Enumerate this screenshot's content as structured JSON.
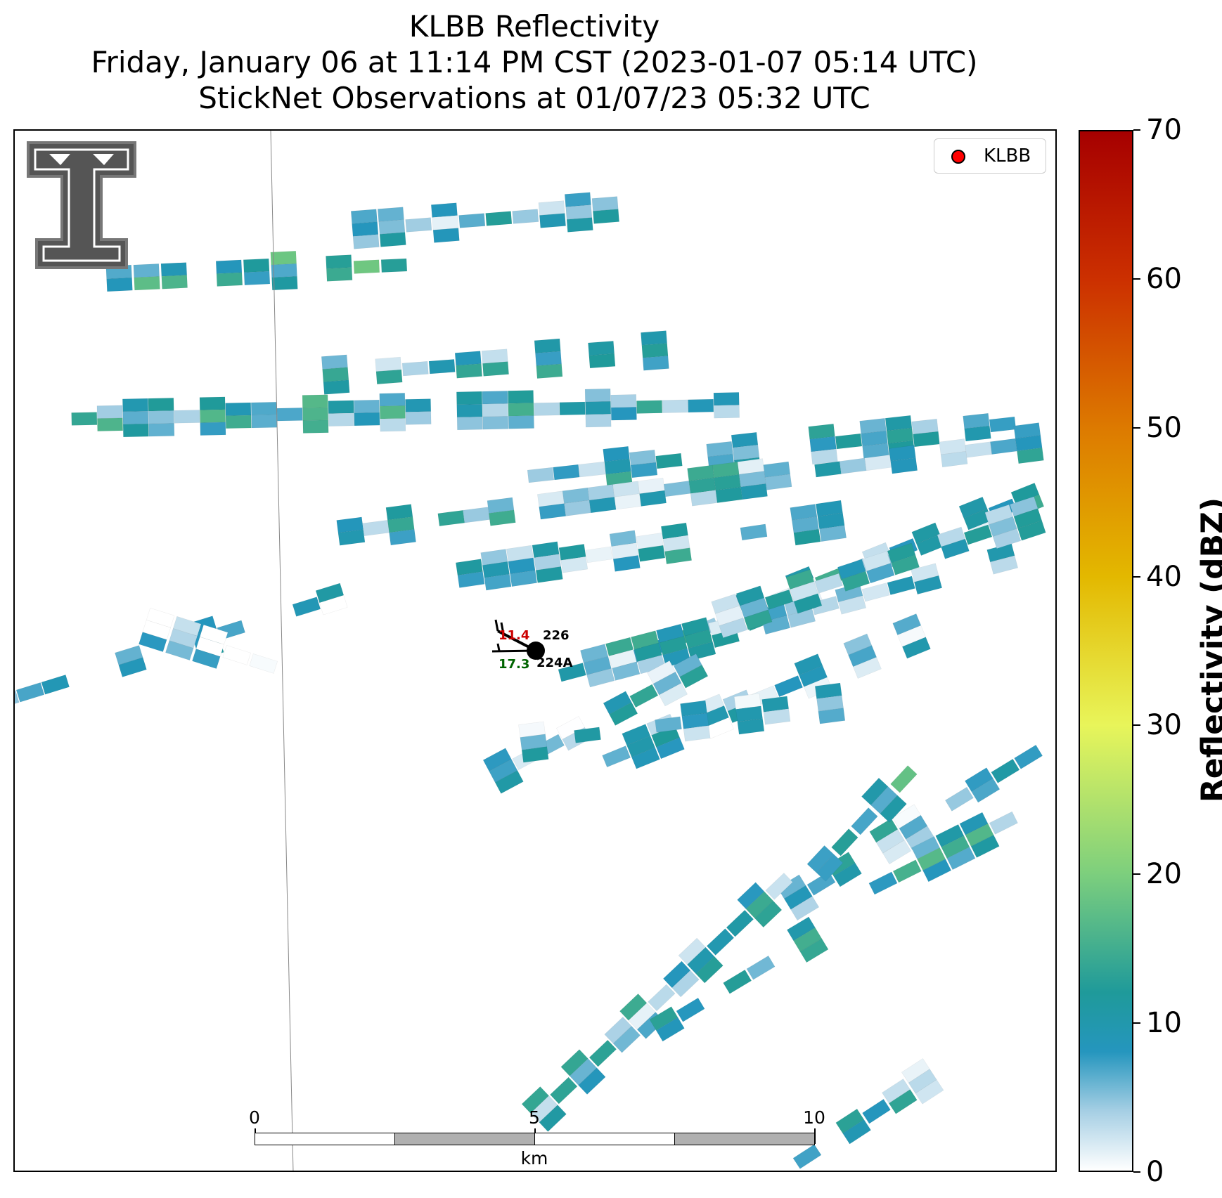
{
  "title": {
    "line1": "KLBB Reflectivity",
    "line2": "Friday, January 06 at 11:14 PM CST (2023-01-07 05:14 UTC)",
    "line3": "StickNet Observations at 01/07/23 05:32 UTC"
  },
  "legend": {
    "label": "KLBB",
    "marker_color": "#ff0000"
  },
  "colorbar": {
    "title": "Reflectivity (dBZ)",
    "min": 0,
    "max": 70,
    "ticks": [
      "0",
      "10",
      "20",
      "30",
      "40",
      "50",
      "60",
      "70"
    ],
    "stops": [
      {
        "value": 0,
        "color": "#ffffff"
      },
      {
        "value": 4,
        "color": "#a6cfe4"
      },
      {
        "value": 8,
        "color": "#2596be"
      },
      {
        "value": 12,
        "color": "#1f9a9a"
      },
      {
        "value": 20,
        "color": "#7dcf7d"
      },
      {
        "value": 30,
        "color": "#e8f55a"
      },
      {
        "value": 40,
        "color": "#e3b800"
      },
      {
        "value": 50,
        "color": "#dd7a00"
      },
      {
        "value": 60,
        "color": "#cc3000"
      },
      {
        "value": 70,
        "color": "#a60000"
      }
    ]
  },
  "scale_bar": {
    "labels": [
      "0",
      "5",
      "10"
    ],
    "unit": "km",
    "segment_colors": [
      "#ffffff",
      "#b0b0b0",
      "#ffffff",
      "#b0b0b0"
    ]
  },
  "stations": [
    {
      "id": "226",
      "temperature": "11.4",
      "dewpoint": "17.3",
      "temperature_color": "#cc0000",
      "dewpoint_color": "#006400"
    },
    {
      "id": "224A"
    }
  ],
  "logo": {
    "name": "texas-tech-double-t-logo",
    "color": "#555555"
  }
}
